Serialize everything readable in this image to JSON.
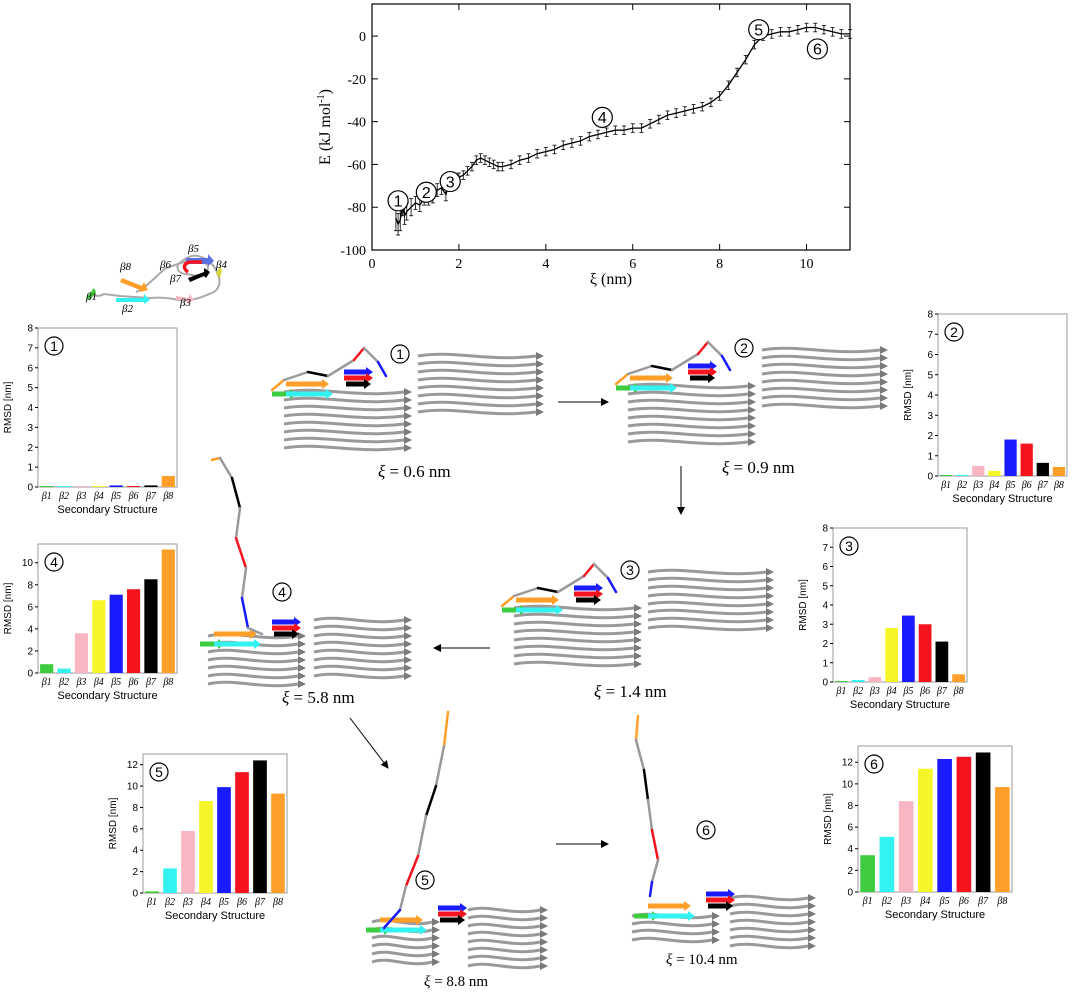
{
  "energy_chart": {
    "xlabel": "ξ (nm)",
    "ylabel": "E (kJ mol",
    "ylabel_sup": "-1",
    "ylabel_close": ")",
    "xticks": [
      "0",
      "2",
      "4",
      "6",
      "8",
      "10"
    ],
    "yticks": [
      "0",
      "-20",
      "-40",
      "-60",
      "-80",
      "-100"
    ],
    "markers": [
      "1",
      "2",
      "3",
      "4",
      "5",
      "6"
    ]
  },
  "chart_data": [
    {
      "type": "line",
      "id": "energy_profile",
      "xlabel": "ξ (nm)",
      "ylabel": "E (kJ mol-1)",
      "xlim": [
        0,
        11
      ],
      "ylim": [
        -100,
        15
      ],
      "error_bars": true,
      "grid": false,
      "x": [
        0.55,
        0.6,
        0.65,
        0.7,
        0.75,
        0.8,
        0.9,
        1.0,
        1.1,
        1.2,
        1.3,
        1.4,
        1.5,
        1.6,
        1.7,
        1.8,
        1.9,
        2.0,
        2.1,
        2.2,
        2.3,
        2.4,
        2.5,
        2.6,
        2.7,
        2.8,
        2.9,
        3.0,
        3.2,
        3.4,
        3.6,
        3.8,
        4.0,
        4.2,
        4.4,
        4.6,
        4.8,
        5.0,
        5.2,
        5.4,
        5.6,
        5.8,
        6.0,
        6.2,
        6.4,
        6.6,
        6.8,
        7.0,
        7.2,
        7.4,
        7.6,
        7.8,
        8.0,
        8.2,
        8.4,
        8.6,
        8.8,
        9.0,
        9.2,
        9.4,
        9.6,
        9.8,
        10.0,
        10.2,
        10.4,
        10.6,
        10.8,
        11.0
      ],
      "y": [
        -85,
        -88,
        -86,
        -80,
        -84,
        -82,
        -80,
        -78,
        -79,
        -76,
        -76,
        -75,
        -72,
        -71,
        -74,
        -68,
        -67,
        -66,
        -65,
        -63,
        -61,
        -58,
        -57,
        -58,
        -59,
        -60,
        -61,
        -61,
        -60,
        -58,
        -57,
        -55,
        -54,
        -53,
        -51,
        -50,
        -49,
        -47,
        -46,
        -45,
        -44,
        -44,
        -43,
        -43,
        -41,
        -39,
        -37,
        -36,
        -35,
        -34,
        -33,
        -31,
        -28,
        -23,
        -17,
        -11,
        -4,
        0,
        1,
        2,
        2,
        3,
        4,
        4,
        3,
        2,
        1,
        1
      ],
      "yerr": [
        6,
        5,
        5,
        4,
        4,
        4,
        4,
        3,
        3,
        3,
        3,
        3,
        3,
        3,
        3,
        3,
        3,
        2,
        2,
        2,
        2,
        2,
        2,
        2,
        2,
        2,
        2,
        2,
        2,
        2,
        2,
        2,
        2,
        2,
        2,
        2,
        2,
        2,
        2,
        2,
        2,
        2,
        2,
        2,
        2,
        2,
        2,
        2,
        2,
        2,
        2,
        2,
        2,
        2,
        2,
        2,
        2,
        2,
        2,
        2,
        2,
        2,
        2,
        2,
        2,
        2,
        2,
        2
      ],
      "annotations": [
        {
          "label": "1",
          "x": 0.6,
          "y": -77
        },
        {
          "label": "2",
          "x": 1.25,
          "y": -73
        },
        {
          "label": "3",
          "x": 1.8,
          "y": -68
        },
        {
          "label": "4",
          "x": 5.3,
          "y": -38
        },
        {
          "label": "5",
          "x": 8.9,
          "y": 3
        },
        {
          "label": "6",
          "x": 10.25,
          "y": -6
        }
      ]
    },
    {
      "type": "bar",
      "id": "rmsd_1",
      "categories": [
        "β1",
        "β2",
        "β3",
        "β4",
        "β5",
        "β6",
        "β7",
        "β8"
      ],
      "values": [
        0.05,
        0.05,
        0.05,
        0.05,
        0.08,
        0.05,
        0.08,
        0.55
      ],
      "colors": [
        "#3dcc3d",
        "#33f2f2",
        "#f7b6c2",
        "#f5f528",
        "#1a1aff",
        "#f5141e",
        "#000000",
        "#ff9f2a"
      ],
      "xlabel": "Secondary Structure",
      "ylabel": "RMSD [nm]",
      "ylim": [
        0,
        8
      ],
      "label": "1"
    },
    {
      "type": "bar",
      "id": "rmsd_2",
      "categories": [
        "β1",
        "β2",
        "β3",
        "β4",
        "β5",
        "β6",
        "β7",
        "β8"
      ],
      "values": [
        0.05,
        0.05,
        0.5,
        0.25,
        1.8,
        1.6,
        0.65,
        0.45
      ],
      "colors": [
        "#3dcc3d",
        "#33f2f2",
        "#f7b6c2",
        "#f5f528",
        "#1a1aff",
        "#f5141e",
        "#000000",
        "#ff9f2a"
      ],
      "xlabel": "Secondary Structure",
      "ylabel": "RMSD [nm]",
      "ylim": [
        0,
        8
      ],
      "label": "2"
    },
    {
      "type": "bar",
      "id": "rmsd_3",
      "categories": [
        "β1",
        "β2",
        "β3",
        "β4",
        "β5",
        "β6",
        "β7",
        "β8"
      ],
      "values": [
        0.05,
        0.1,
        0.25,
        2.8,
        3.45,
        3.0,
        2.1,
        0.4
      ],
      "colors": [
        "#3dcc3d",
        "#33f2f2",
        "#f7b6c2",
        "#f5f528",
        "#1a1aff",
        "#f5141e",
        "#000000",
        "#ff9f2a"
      ],
      "xlabel": "Secondary Structure",
      "ylabel": "RMSD [nm]",
      "ylim": [
        0,
        8
      ],
      "label": "3"
    },
    {
      "type": "bar",
      "id": "rmsd_4",
      "categories": [
        "β1",
        "β2",
        "β3",
        "β4",
        "β5",
        "β6",
        "β7",
        "β8"
      ],
      "values": [
        0.8,
        0.4,
        3.6,
        6.6,
        7.1,
        7.6,
        8.5,
        11.2
      ],
      "colors": [
        "#3dcc3d",
        "#33f2f2",
        "#f7b6c2",
        "#f5f528",
        "#1a1aff",
        "#f5141e",
        "#000000",
        "#ff9f2a"
      ],
      "xlabel": "Secondary Structure",
      "ylabel": "RMSD [nm]",
      "ylim": [
        0,
        11.7
      ],
      "label": "4"
    },
    {
      "type": "bar",
      "id": "rmsd_5",
      "categories": [
        "β1",
        "β2",
        "β3",
        "β4",
        "β5",
        "β6",
        "β7",
        "β8"
      ],
      "values": [
        0.15,
        2.3,
        5.8,
        8.6,
        9.9,
        11.3,
        12.4,
        9.3
      ],
      "colors": [
        "#3dcc3d",
        "#33f2f2",
        "#f7b6c2",
        "#f5f528",
        "#1a1aff",
        "#f5141e",
        "#000000",
        "#ff9f2a"
      ],
      "xlabel": "Secondary Structure",
      "ylabel": "RMSD [nm]",
      "ylim": [
        0,
        13
      ],
      "label": "5"
    },
    {
      "type": "bar",
      "id": "rmsd_6",
      "categories": [
        "β1",
        "β2",
        "β3",
        "β4",
        "β5",
        "β6",
        "β7",
        "β8"
      ],
      "values": [
        3.4,
        5.1,
        8.4,
        11.4,
        12.3,
        12.5,
        12.9,
        9.7
      ],
      "colors": [
        "#3dcc3d",
        "#33f2f2",
        "#f7b6c2",
        "#f5f528",
        "#1a1aff",
        "#f5141e",
        "#000000",
        "#ff9f2a"
      ],
      "xlabel": "Secondary Structure",
      "ylabel": "RMSD [nm]",
      "ylim": [
        0,
        13.5
      ],
      "label": "6"
    }
  ],
  "bar_ticks": {
    "rmsd_1": [
      "0",
      "1",
      "2",
      "3",
      "4",
      "5",
      "6",
      "7",
      "8"
    ],
    "rmsd_2": [
      "0",
      "1",
      "2",
      "3",
      "4",
      "5",
      "6",
      "7",
      "8"
    ],
    "rmsd_3": [
      "0",
      "1",
      "2",
      "3",
      "4",
      "5",
      "6",
      "7",
      "8"
    ],
    "rmsd_4": [
      "0",
      "2",
      "4",
      "6",
      "8",
      "10"
    ],
    "rmsd_5": [
      "0",
      "2",
      "4",
      "6",
      "8",
      "10",
      "12"
    ],
    "rmsd_6": [
      "0",
      "2",
      "4",
      "6",
      "8",
      "10",
      "12"
    ]
  },
  "legend_structure": {
    "labels": [
      "β8",
      "β6",
      "β5",
      "β7",
      "β4",
      "β1",
      "β2",
      "β3"
    ]
  },
  "snapshots": [
    {
      "id": "s1",
      "marker": "1",
      "xi_prefix": "ξ",
      "xi_text": " = 0.6 nm"
    },
    {
      "id": "s2",
      "marker": "2",
      "xi_prefix": "ξ",
      "xi_text": " = 0.9 nm"
    },
    {
      "id": "s3",
      "marker": "3",
      "xi_prefix": "ξ",
      "xi_text": " = 1.4 nm"
    },
    {
      "id": "s4",
      "marker": "4",
      "xi_prefix": "ξ",
      "xi_text": " = 5.8 nm"
    },
    {
      "id": "s5",
      "marker": "5",
      "xi_prefix": "ξ",
      "xi_text": " = 8.8 nm"
    },
    {
      "id": "s6",
      "marker": "6",
      "xi_prefix": "ξ",
      "xi_text": " = 10.4 nm"
    }
  ],
  "colors": {
    "beta1": "#3dcc3d",
    "beta2": "#33f2f2",
    "beta3": "#f7b6c2",
    "beta4": "#f5f528",
    "beta5": "#1a1aff",
    "beta6": "#f5141e",
    "beta7": "#000000",
    "beta8": "#ff9f2a",
    "fibril": "#9a9a9a"
  }
}
